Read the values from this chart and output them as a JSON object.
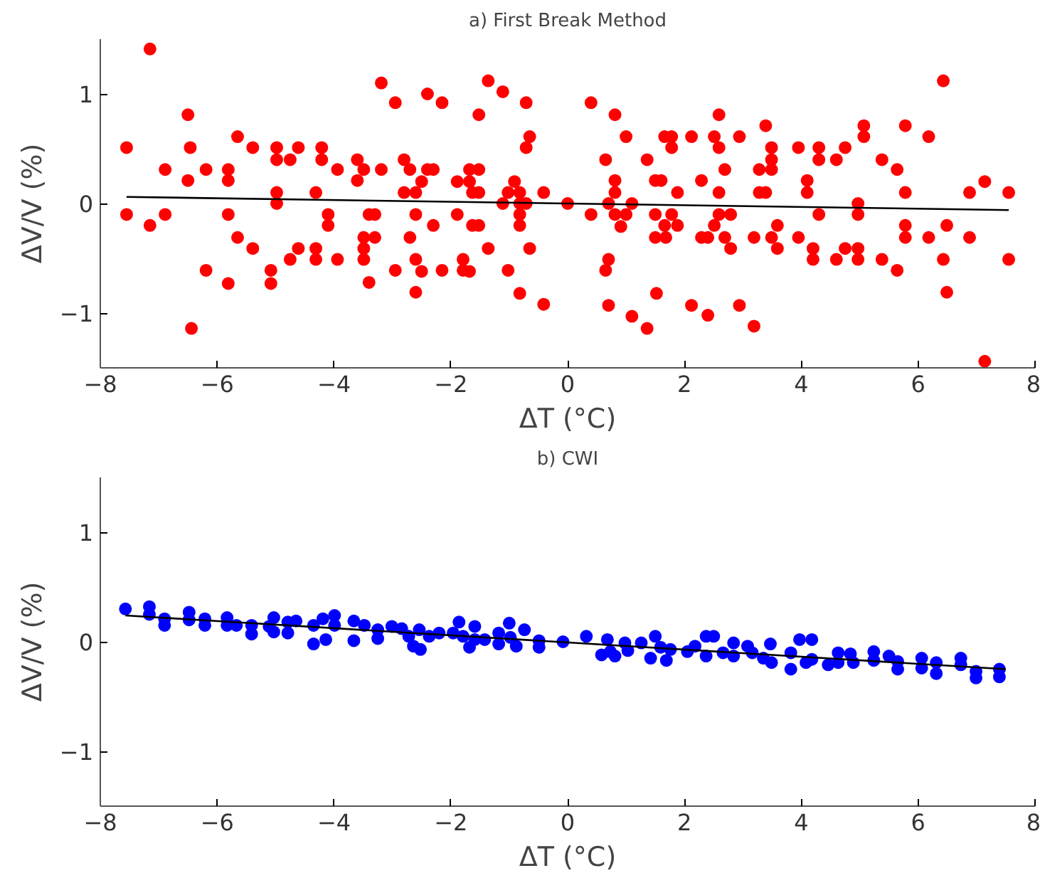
{
  "chart_data": [
    {
      "type": "scatter",
      "title": "a) First Break Method",
      "xlabel": "ΔT (°C)",
      "ylabel": "ΔV/V (%)",
      "xlim": [
        -8,
        8
      ],
      "ylim": [
        -1.5,
        1.5
      ],
      "xticks": [
        -8,
        -6,
        -4,
        -2,
        0,
        2,
        4,
        6,
        8
      ],
      "yticks": [
        -1,
        0,
        1
      ],
      "grid": false,
      "series": [
        {
          "marker": "circle",
          "color": "#ff0000",
          "x": [
            -7.55,
            -7.55,
            -7.15,
            -7.15,
            -6.89,
            -6.89,
            -6.5,
            -6.46,
            -6.5,
            -6.44,
            -6.19,
            -6.19,
            -5.81,
            -5.81,
            -5.81,
            -5.81,
            -5.65,
            -5.65,
            -5.39,
            -5.39,
            -5.08,
            -5.08,
            -4.98,
            -4.98,
            -4.98,
            -4.98,
            -4.75,
            -4.75,
            -4.61,
            -4.61,
            -4.31,
            -4.31,
            -4.31,
            -4.21,
            -4.21,
            -4.1,
            -4.1,
            -3.94,
            -3.94,
            -3.6,
            -3.6,
            -3.49,
            -3.49,
            -3.49,
            -3.49,
            -3.4,
            -3.4,
            -3.3,
            -3.3,
            -3.19,
            -3.19,
            -2.95,
            -2.95,
            -2.8,
            -2.8,
            -2.7,
            -2.7,
            -2.6,
            -2.6,
            -2.6,
            -2.6,
            -2.5,
            -2.5,
            -2.4,
            -2.4,
            -2.3,
            -2.3,
            -2.15,
            -2.15,
            -1.89,
            -1.89,
            -1.79,
            -1.79,
            -1.68,
            -1.68,
            -1.68,
            -1.63,
            -1.63,
            -1.52,
            -1.52,
            -1.52,
            -1.52,
            -1.36,
            -1.36,
            -1.11,
            -1.11,
            -1.02,
            -1.02,
            -0.91,
            -0.82,
            -0.82,
            -0.82,
            -0.82,
            -0.82,
            -0.71,
            -0.71,
            -0.71,
            -0.65,
            -0.65,
            -0.41,
            -0.41,
            0.0,
            0.4,
            0.4,
            0.65,
            0.65,
            0.7,
            0.7,
            0.7,
            0.81,
            0.81,
            0.81,
            0.81,
            0.91,
            1.0,
            1.0,
            1.1,
            1.1,
            1.36,
            1.36,
            1.5,
            1.5,
            1.5,
            1.52,
            1.6,
            1.66,
            1.66,
            1.68,
            1.78,
            1.78,
            1.78,
            1.88,
            1.88,
            2.12,
            2.12,
            2.29,
            2.29,
            2.4,
            2.4,
            2.51,
            2.51,
            2.59,
            2.59,
            2.59,
            2.59,
            2.69,
            2.69,
            2.79,
            2.79,
            2.94,
            2.94,
            3.19,
            3.19,
            3.28,
            3.28,
            3.39,
            3.39,
            3.49,
            3.49,
            3.49,
            3.49,
            3.59,
            3.59,
            3.95,
            3.95,
            4.1,
            4.1,
            4.2,
            4.2,
            4.3,
            4.3,
            4.3,
            4.6,
            4.6,
            4.75,
            4.75,
            4.97,
            4.97,
            4.97,
            4.97,
            5.07,
            5.07,
            5.38,
            5.38,
            5.64,
            5.64,
            5.78,
            5.78,
            5.78,
            5.78,
            6.18,
            6.18,
            6.43,
            6.43,
            6.49,
            6.49,
            6.88,
            6.88,
            7.14,
            7.14,
            7.55,
            7.55
          ],
          "values": [
            0.51,
            -0.1,
            1.41,
            -0.2,
            0.31,
            -0.1,
            0.81,
            0.51,
            0.21,
            -1.14,
            0.31,
            -0.61,
            0.31,
            0.21,
            -0.1,
            -0.73,
            0.61,
            -0.31,
            0.51,
            -0.41,
            -0.61,
            -0.73,
            0.51,
            0.4,
            0.1,
            0.0,
            0.4,
            -0.51,
            0.51,
            -0.41,
            0.1,
            -0.41,
            -0.51,
            0.51,
            0.4,
            -0.1,
            -0.2,
            0.31,
            -0.51,
            0.4,
            0.21,
            0.31,
            -0.31,
            -0.41,
            -0.51,
            -0.1,
            -0.72,
            -0.1,
            -0.31,
            1.1,
            0.31,
            0.92,
            -0.61,
            0.4,
            0.1,
            0.31,
            -0.31,
            0.1,
            -0.1,
            -0.51,
            -0.81,
            0.2,
            -0.62,
            1.0,
            0.31,
            0.31,
            -0.2,
            0.92,
            -0.61,
            0.2,
            -0.1,
            -0.51,
            -0.61,
            0.31,
            0.2,
            -0.62,
            0.1,
            -0.2,
            0.81,
            0.31,
            0.1,
            -0.2,
            1.12,
            -0.41,
            1.02,
            0.0,
            0.1,
            -0.61,
            0.2,
            0.1,
            0.0,
            -0.1,
            -0.2,
            -0.82,
            0.92,
            0.0,
            0.51,
            0.61,
            -0.41,
            0.1,
            -0.92,
            0.0,
            0.92,
            -0.1,
            0.4,
            -0.61,
            -0.51,
            -0.93,
            0.0,
            0.81,
            0.21,
            0.1,
            -0.1,
            -0.21,
            0.61,
            -0.1,
            0.0,
            -1.03,
            0.4,
            -1.14,
            0.21,
            -0.1,
            -0.31,
            -0.82,
            0.21,
            0.61,
            -0.2,
            -0.31,
            0.61,
            0.51,
            -0.1,
            0.1,
            -0.2,
            0.61,
            -0.93,
            0.21,
            -0.31,
            -0.31,
            -1.02,
            0.61,
            -0.2,
            0.81,
            0.51,
            0.1,
            -0.1,
            0.31,
            -0.31,
            -0.1,
            -0.41,
            0.61,
            -0.93,
            -0.31,
            -1.12,
            0.31,
            0.1,
            0.71,
            0.1,
            0.51,
            0.4,
            0.31,
            -0.31,
            -0.2,
            -0.41,
            0.51,
            -0.31,
            0.21,
            0.1,
            -0.41,
            -0.51,
            0.51,
            0.4,
            -0.1,
            0.4,
            -0.51,
            0.51,
            -0.41,
            0.0,
            -0.1,
            -0.41,
            -0.51,
            0.71,
            0.61,
            0.4,
            -0.51,
            0.31,
            -0.61,
            0.71,
            0.1,
            -0.2,
            -0.31,
            0.61,
            -0.31,
            1.12,
            -0.51,
            -0.2,
            -0.81,
            0.1,
            -0.31,
            0.2,
            -1.44,
            0.1,
            -0.51
          ]
        },
        {
          "type": "line",
          "marker": "none",
          "color": "#000000",
          "x": [
            -7.55,
            7.55
          ],
          "values": [
            0.06,
            -0.06
          ]
        }
      ]
    },
    {
      "type": "scatter",
      "title": "b) CWI",
      "xlabel": "ΔT (°C)",
      "ylabel": "ΔV/V (%)",
      "xlim": [
        -8,
        8
      ],
      "ylim": [
        -1.5,
        1.5
      ],
      "xticks": [
        -8,
        -6,
        -4,
        -2,
        0,
        2,
        4,
        6,
        8
      ],
      "yticks": [
        -1,
        0,
        1
      ],
      "grid": false,
      "series": [
        {
          "marker": "circle",
          "color": "#0000ff",
          "x": [
            -7.57,
            -7.16,
            -7.16,
            -6.9,
            -6.9,
            -6.48,
            -6.48,
            -6.21,
            -6.21,
            -5.83,
            -5.83,
            -5.67,
            -5.41,
            -5.41,
            -5.11,
            -5.03,
            -5.03,
            -4.79,
            -4.79,
            -4.65,
            -4.35,
            -4.35,
            -4.19,
            -4.14,
            -3.99,
            -3.99,
            -3.66,
            -3.66,
            -3.48,
            -3.25,
            -3.25,
            -3.01,
            -2.84,
            -2.72,
            -2.64,
            -2.54,
            -2.52,
            -2.37,
            -2.2,
            -1.96,
            -1.86,
            -1.79,
            -1.68,
            -1.59,
            -1.59,
            -1.42,
            -1.18,
            -1.18,
            -1.0,
            -0.98,
            -0.88,
            -0.74,
            -0.49,
            -0.49,
            -0.08,
            0.32,
            0.58,
            0.68,
            0.73,
            0.81,
            0.98,
            1.03,
            1.26,
            1.42,
            1.5,
            1.59,
            1.69,
            1.76,
            2.05,
            2.18,
            2.37,
            2.37,
            2.5,
            2.66,
            2.84,
            2.84,
            3.08,
            3.16,
            3.35,
            3.47,
            3.49,
            3.82,
            3.82,
            3.97,
            4.08,
            4.18,
            4.18,
            4.46,
            4.63,
            4.63,
            4.84,
            4.89,
            5.24,
            5.24,
            5.5,
            5.65,
            5.65,
            6.06,
            6.06,
            6.31,
            6.31,
            6.73,
            6.73,
            6.99,
            6.99,
            7.39,
            7.39
          ],
          "values": [
            0.3,
            0.32,
            0.25,
            0.21,
            0.15,
            0.27,
            0.2,
            0.21,
            0.15,
            0.22,
            0.15,
            0.15,
            0.15,
            0.07,
            0.14,
            0.22,
            0.09,
            0.18,
            0.08,
            0.19,
            0.15,
            -0.02,
            0.21,
            0.02,
            0.24,
            0.15,
            0.19,
            0.01,
            0.15,
            0.11,
            0.03,
            0.14,
            0.12,
            0.05,
            -0.04,
            0.11,
            -0.07,
            0.05,
            0.08,
            0.08,
            0.18,
            0.05,
            -0.05,
            0.14,
            0.02,
            0.02,
            0.08,
            -0.02,
            0.17,
            0.04,
            -0.04,
            0.11,
            0.01,
            -0.05,
            0.0,
            0.05,
            -0.12,
            0.02,
            -0.09,
            -0.13,
            -0.01,
            -0.08,
            -0.01,
            -0.15,
            0.05,
            -0.05,
            -0.17,
            -0.07,
            -0.09,
            -0.04,
            0.05,
            -0.13,
            0.05,
            -0.1,
            -0.01,
            -0.13,
            -0.04,
            -0.1,
            -0.15,
            -0.02,
            -0.19,
            -0.1,
            -0.25,
            0.02,
            -0.19,
            0.02,
            -0.16,
            -0.21,
            -0.1,
            -0.19,
            -0.11,
            -0.19,
            -0.09,
            -0.17,
            -0.13,
            -0.18,
            -0.25,
            -0.15,
            -0.24,
            -0.19,
            -0.29,
            -0.15,
            -0.21,
            -0.27,
            -0.33,
            -0.25,
            -0.32
          ]
        },
        {
          "type": "line",
          "marker": "none",
          "color": "#000000",
          "x": [
            -7.57,
            7.5
          ],
          "values": [
            0.24,
            -0.25
          ]
        }
      ]
    }
  ]
}
